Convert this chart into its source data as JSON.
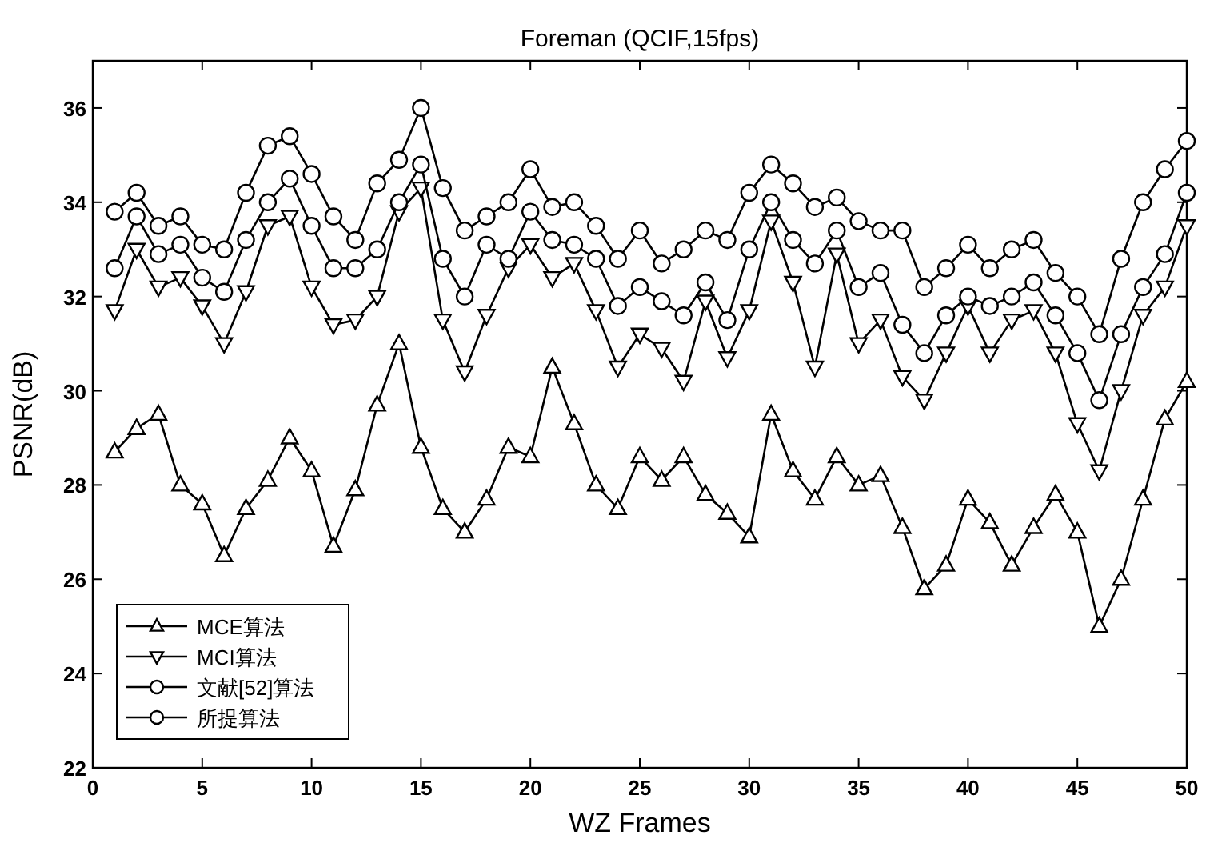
{
  "chart_data": {
    "type": "line",
    "title": "Foreman (QCIF,15fps)",
    "xlabel": "WZ Frames",
    "ylabel": "PSNR(dB)",
    "x": [
      1,
      2,
      3,
      4,
      5,
      6,
      7,
      8,
      9,
      10,
      11,
      12,
      13,
      14,
      15,
      16,
      17,
      18,
      19,
      20,
      21,
      22,
      23,
      24,
      25,
      26,
      27,
      28,
      29,
      30,
      31,
      32,
      33,
      34,
      35,
      36,
      37,
      38,
      39,
      40,
      41,
      42,
      43,
      44,
      45,
      46,
      47,
      48,
      49,
      50
    ],
    "xlim": [
      0,
      50
    ],
    "xticks": [
      0,
      5,
      10,
      15,
      20,
      25,
      30,
      35,
      40,
      45,
      50
    ],
    "ylim": [
      22,
      37
    ],
    "yticks": [
      22,
      24,
      26,
      28,
      30,
      32,
      34,
      36
    ],
    "grid": false,
    "legend": "bottom left",
    "line_style": "solid",
    "series": [
      {
        "name": "MCE算法",
        "color": "#000000",
        "marker": "triangle",
        "values": [
          28.7,
          29.2,
          29.5,
          28.0,
          27.6,
          26.5,
          27.5,
          28.1,
          29.0,
          28.3,
          26.7,
          27.9,
          29.7,
          31.0,
          28.8,
          27.5,
          27.0,
          27.7,
          28.8,
          28.6,
          30.5,
          29.3,
          28.0,
          27.5,
          28.6,
          28.1,
          28.6,
          27.8,
          27.4,
          26.9,
          29.5,
          28.3,
          27.7,
          28.6,
          28.0,
          28.2,
          27.1,
          25.8,
          26.3,
          27.7,
          27.2,
          26.3,
          27.1,
          27.8,
          27.0,
          25.0,
          26.0,
          27.7,
          29.4,
          30.2
        ]
      },
      {
        "name": "MCI算法",
        "color": "#000000",
        "marker": "triangle-down",
        "values": [
          31.7,
          33.0,
          32.2,
          32.4,
          31.8,
          31.0,
          32.1,
          33.5,
          33.7,
          32.2,
          31.4,
          31.5,
          32.0,
          33.8,
          34.3,
          31.5,
          30.4,
          31.6,
          32.6,
          33.1,
          32.4,
          32.7,
          31.7,
          30.5,
          31.2,
          30.9,
          30.2,
          31.9,
          30.7,
          31.7,
          33.6,
          32.3,
          30.5,
          32.9,
          31.0,
          31.5,
          30.3,
          29.8,
          30.8,
          31.8,
          30.8,
          31.5,
          31.7,
          30.8,
          29.3,
          28.3,
          30.0,
          31.6,
          32.2,
          33.5
        ]
      },
      {
        "name": "文献[52]算法",
        "color": "#000000",
        "marker": "circle",
        "values": [
          32.6,
          33.7,
          32.9,
          33.1,
          32.4,
          32.1,
          33.2,
          34.0,
          34.5,
          33.5,
          32.6,
          32.6,
          33.0,
          34.0,
          34.8,
          32.8,
          32.0,
          33.1,
          32.8,
          33.8,
          33.2,
          33.1,
          32.8,
          31.8,
          32.2,
          31.9,
          31.6,
          32.3,
          31.5,
          33.0,
          34.0,
          33.2,
          32.7,
          33.4,
          32.2,
          32.5,
          31.4,
          30.8,
          31.6,
          32.0,
          31.8,
          32.0,
          32.3,
          31.6,
          30.8,
          29.8,
          31.2,
          32.2,
          32.9,
          34.2
        ]
      },
      {
        "name": "所提算法",
        "color": "#000000",
        "marker": "circle",
        "values": [
          33.8,
          34.2,
          33.5,
          33.7,
          33.1,
          33.0,
          34.2,
          35.2,
          35.4,
          34.6,
          33.7,
          33.2,
          34.4,
          34.9,
          36.0,
          34.3,
          33.4,
          33.7,
          34.0,
          34.7,
          33.9,
          34.0,
          33.5,
          32.8,
          33.4,
          32.7,
          33.0,
          33.4,
          33.2,
          34.2,
          34.8,
          34.4,
          33.9,
          34.1,
          33.6,
          33.4,
          33.4,
          32.2,
          32.6,
          33.1,
          32.6,
          33.0,
          33.2,
          32.5,
          32.0,
          31.2,
          32.8,
          34.0,
          34.7,
          35.3
        ]
      }
    ]
  }
}
